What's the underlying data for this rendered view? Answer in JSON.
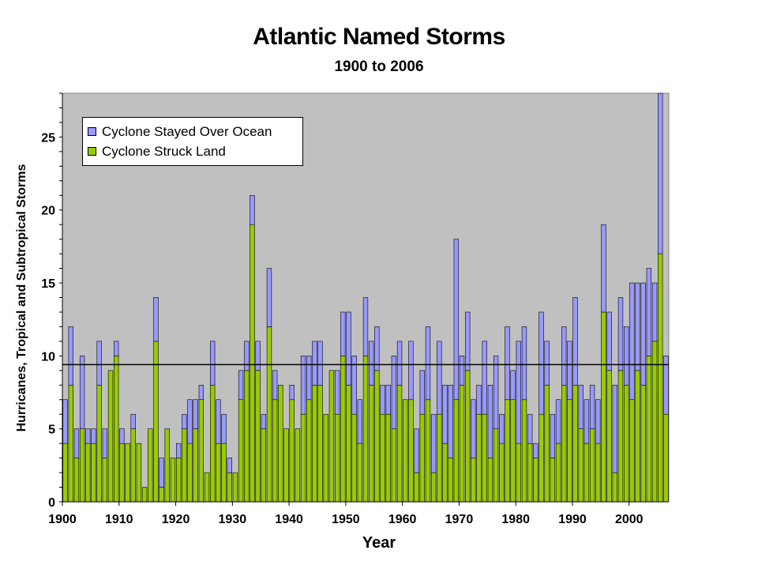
{
  "chart_data": {
    "type": "bar",
    "stacked": true,
    "title": "Atlantic Named Storms",
    "subtitle": "1900 to 2006",
    "xlabel": "Year",
    "ylabel": "Hurricanes, Tropical and Subtropical Storms",
    "xlim": [
      1900,
      2006
    ],
    "ylim": [
      0,
      28
    ],
    "x_ticks": [
      1900,
      1910,
      1920,
      1930,
      1940,
      1950,
      1960,
      1970,
      1980,
      1990,
      2000
    ],
    "y_ticks": [
      0,
      5,
      10,
      15,
      20,
      25
    ],
    "grid": false,
    "legend": "top-left",
    "reference_line": 9.4,
    "x": [
      1900,
      1901,
      1902,
      1903,
      1904,
      1905,
      1906,
      1907,
      1908,
      1909,
      1910,
      1911,
      1912,
      1913,
      1914,
      1915,
      1916,
      1917,
      1918,
      1919,
      1920,
      1921,
      1922,
      1923,
      1924,
      1925,
      1926,
      1927,
      1928,
      1929,
      1930,
      1931,
      1932,
      1933,
      1934,
      1935,
      1936,
      1937,
      1938,
      1939,
      1940,
      1941,
      1942,
      1943,
      1944,
      1945,
      1946,
      1947,
      1948,
      1949,
      1950,
      1951,
      1952,
      1953,
      1954,
      1955,
      1956,
      1957,
      1958,
      1959,
      1960,
      1961,
      1962,
      1963,
      1964,
      1965,
      1966,
      1967,
      1968,
      1969,
      1970,
      1971,
      1972,
      1973,
      1974,
      1975,
      1976,
      1977,
      1978,
      1979,
      1980,
      1981,
      1982,
      1983,
      1984,
      1985,
      1986,
      1987,
      1988,
      1989,
      1990,
      1991,
      1992,
      1993,
      1994,
      1995,
      1996,
      1997,
      1998,
      1999,
      2000,
      2001,
      2002,
      2003,
      2004,
      2005,
      2006
    ],
    "series": [
      {
        "name": "Cyclone Struck Land",
        "color": "#99cc00",
        "values": [
          4,
          8,
          3,
          5,
          4,
          4,
          8,
          3,
          9,
          10,
          4,
          4,
          5,
          4,
          1,
          5,
          11,
          1,
          5,
          3,
          3,
          5,
          4,
          5,
          7,
          2,
          8,
          4,
          4,
          2,
          2,
          7,
          9,
          19,
          9,
          5,
          12,
          7,
          8,
          5,
          7,
          5,
          6,
          7,
          8,
          8,
          6,
          9,
          6,
          10,
          8,
          6,
          4,
          10,
          8,
          9,
          6,
          6,
          5,
          8,
          7,
          7,
          2,
          6,
          7,
          2,
          6,
          4,
          3,
          7,
          8,
          9,
          3,
          6,
          6,
          3,
          5,
          4,
          7,
          7,
          4,
          7,
          4,
          3,
          6,
          8,
          3,
          4,
          8,
          7,
          8,
          5,
          4,
          5,
          4,
          13,
          9,
          2,
          9,
          8,
          7,
          9,
          8,
          10,
          11,
          17,
          6
        ]
      },
      {
        "name": "Cyclone Stayed Over Ocean",
        "color": "#9999ff",
        "values": [
          3,
          4,
          2,
          5,
          1,
          1,
          3,
          2,
          0,
          1,
          1,
          0,
          1,
          0,
          0,
          0,
          3,
          2,
          0,
          0,
          1,
          1,
          3,
          2,
          1,
          0,
          3,
          3,
          2,
          1,
          0,
          2,
          2,
          2,
          2,
          1,
          4,
          2,
          0,
          0,
          1,
          0,
          4,
          3,
          3,
          3,
          0,
          0,
          3,
          3,
          5,
          4,
          3,
          4,
          3,
          3,
          2,
          2,
          5,
          3,
          0,
          4,
          3,
          3,
          5,
          4,
          5,
          4,
          5,
          11,
          2,
          4,
          4,
          2,
          5,
          5,
          5,
          2,
          5,
          2,
          7,
          5,
          2,
          1,
          7,
          3,
          3,
          3,
          4,
          4,
          6,
          3,
          3,
          3,
          3,
          6,
          4,
          6,
          5,
          4,
          8,
          6,
          7,
          6,
          4,
          11,
          4
        ]
      }
    ]
  }
}
